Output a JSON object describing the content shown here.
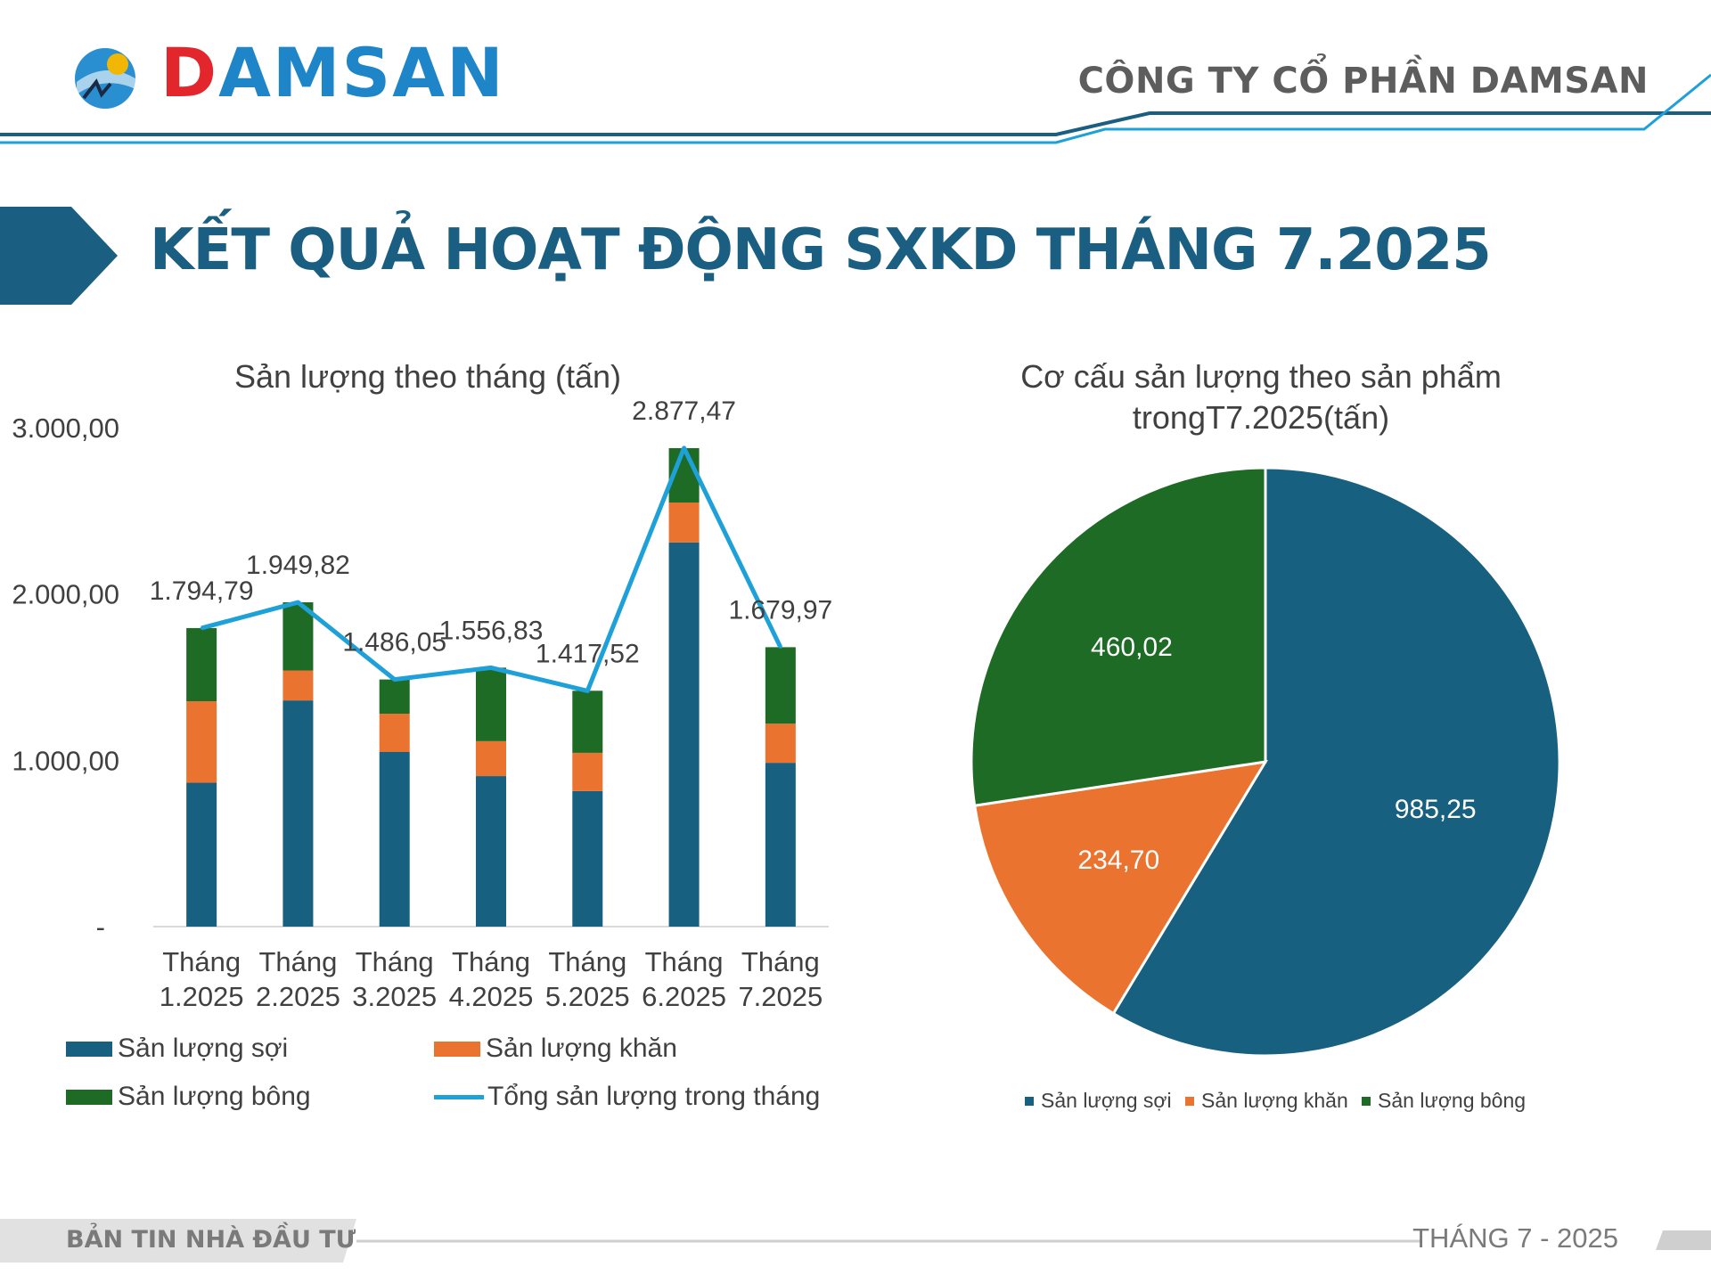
{
  "header": {
    "logo_text_first": "D",
    "logo_text_rest": "AMSAN",
    "company_name": "CÔNG TY CỔ PHẦN DAMSAN"
  },
  "page_title": "KẾT QUẢ HOẠT ĐỘNG SXKD THÁNG 7.2025",
  "footer": {
    "left": "BẢN TIN NHÀ ĐẦU TƯ",
    "right": "THÁNG 7 - 2025"
  },
  "colors": {
    "primary": "#1a5f82",
    "sợi": "#17607f",
    "khăn": "#ea7330",
    "bông": "#1e6b26",
    "total_line": "#1ea0d8"
  },
  "chart_data": [
    {
      "type": "bar",
      "stacked": true,
      "title": "Sản lượng theo tháng (tấn)",
      "categories": [
        "Tháng 1.2025",
        "Tháng 2.2025",
        "Tháng 3.2025",
        "Tháng 4.2025",
        "Tháng 5.2025",
        "Tháng 6.2025",
        "Tháng 7.2025"
      ],
      "category_lines": [
        [
          "Tháng",
          "1.2025"
        ],
        [
          "Tháng",
          "2.2025"
        ],
        [
          "Tháng",
          "3.2025"
        ],
        [
          "Tháng",
          "4.2025"
        ],
        [
          "Tháng",
          "5.2025"
        ],
        [
          "Tháng",
          "6.2025"
        ],
        [
          "Tháng",
          "7.2025"
        ]
      ],
      "series": [
        {
          "name": "Sản lượng sợi",
          "values": [
            865,
            1360,
            1050,
            905,
            815,
            2310,
            985
          ]
        },
        {
          "name": "Sản lượng khăn",
          "values": [
            490,
            180,
            230,
            210,
            230,
            240,
            235
          ]
        },
        {
          "name": "Sản lượng bông",
          "values": [
            440,
            410,
            206,
            442,
            373,
            327,
            460
          ]
        }
      ],
      "line_series": {
        "name": "Tổng sản lượng trong tháng",
        "values": [
          1794.79,
          1949.82,
          1486.05,
          1556.83,
          1417.52,
          2877.47,
          1679.97
        ],
        "labels": [
          "1.794,79",
          "1.949,82",
          "1.486,05",
          "1.556,83",
          "1.417,52",
          "2.877,47",
          "1.679,97"
        ]
      },
      "yticks": [
        "-",
        "1.000,00",
        "2.000,00",
        "3.000,00"
      ],
      "ylim": [
        0,
        3000
      ],
      "legend_position": "bottom"
    },
    {
      "type": "pie",
      "title_lines": [
        "Cơ cấu sản lượng theo sản phẩm",
        "trongT7.2025(tấn)"
      ],
      "slices": [
        {
          "name": "Sản lượng sợi",
          "value": 985.25,
          "label": "985,25"
        },
        {
          "name": "Sản lượng khăn",
          "value": 234.7,
          "label": "234,70"
        },
        {
          "name": "Sản lượng bông",
          "value": 460.02,
          "label": "460,02"
        }
      ],
      "legend_position": "bottom"
    }
  ]
}
